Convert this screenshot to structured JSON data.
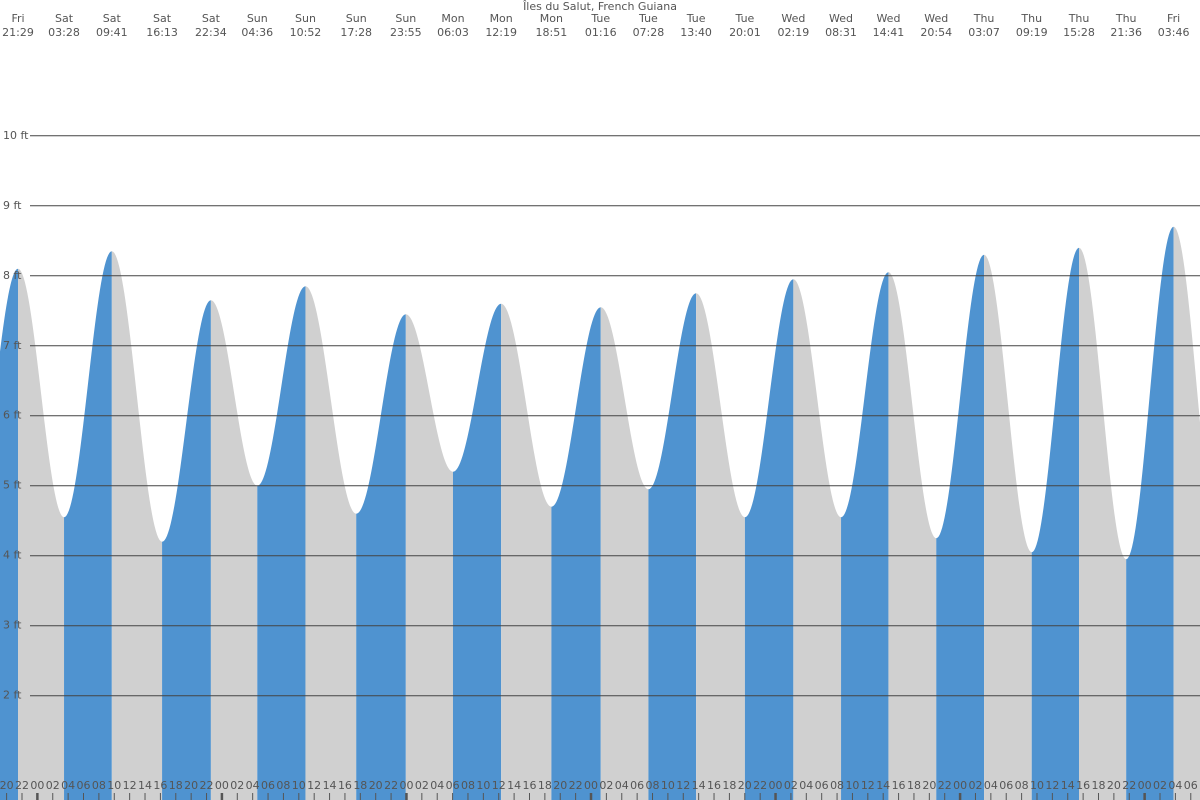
{
  "chart_data": {
    "type": "area",
    "title": "Îles du Salut, French Guiana",
    "days": [
      "Fri",
      "Sat",
      "Sat",
      "Sat",
      "Sat",
      "Sun",
      "Sun",
      "Sun",
      "Sun",
      "Mon",
      "Mon",
      "Mon",
      "Tue",
      "Tue",
      "Tue",
      "Tue",
      "Wed",
      "Wed",
      "Wed",
      "Wed",
      "Thu",
      "Thu",
      "Thu",
      "Thu",
      "Fri"
    ],
    "times": [
      "21:29",
      "03:28",
      "09:41",
      "16:13",
      "22:34",
      "04:36",
      "10:52",
      "17:28",
      "23:55",
      "06:03",
      "12:19",
      "18:51",
      "01:16",
      "07:28",
      "13:40",
      "20:01",
      "02:19",
      "08:31",
      "14:41",
      "20:54",
      "03:07",
      "09:19",
      "15:28",
      "21:36",
      "03:46"
    ],
    "x": [
      21.483,
      27.467,
      33.683,
      40.217,
      46.567,
      52.6,
      58.867,
      65.467,
      71.917,
      78.05,
      84.317,
      90.85,
      97.267,
      103.467,
      109.667,
      116.017,
      122.317,
      128.517,
      134.683,
      140.9,
      147.117,
      153.317,
      159.467,
      165.6,
      171.767
    ],
    "values": [
      8.1,
      4.55,
      8.35,
      4.2,
      7.65,
      5.0,
      7.85,
      4.6,
      7.45,
      5.2,
      7.6,
      4.7,
      7.55,
      4.95,
      7.75,
      4.55,
      7.95,
      4.55,
      8.05,
      4.25,
      8.3,
      4.05,
      8.4,
      3.95,
      8.7
    ],
    "rising_color": "#4f93d0",
    "falling_color": "#d0d0d0",
    "grid": true,
    "xlim": [
      19.14,
      175.2
    ],
    "ylim": [
      0.51,
      11.94
    ],
    "yticks": [
      {
        "value": 2,
        "label": "2 ft"
      },
      {
        "value": 3,
        "label": "3 ft"
      },
      {
        "value": 4,
        "label": "4 ft"
      },
      {
        "value": 5,
        "label": "5 ft"
      },
      {
        "value": 6,
        "label": "6 ft"
      },
      {
        "value": 7,
        "label": "7 ft"
      },
      {
        "value": 8,
        "label": "8 ft"
      },
      {
        "value": 9,
        "label": "9 ft"
      },
      {
        "value": 10,
        "label": "10 ft"
      }
    ],
    "xticks": [
      {
        "value": 20,
        "label": "20"
      },
      {
        "value": 22,
        "label": "22"
      },
      {
        "value": 24,
        "label": "00"
      },
      {
        "value": 26,
        "label": "02"
      },
      {
        "value": 28,
        "label": "04"
      },
      {
        "value": 30,
        "label": "06"
      },
      {
        "value": 32,
        "label": "08"
      },
      {
        "value": 34,
        "label": "10"
      },
      {
        "value": 36,
        "label": "12"
      },
      {
        "value": 38,
        "label": "14"
      },
      {
        "value": 40,
        "label": "16"
      },
      {
        "value": 42,
        "label": "18"
      },
      {
        "value": 44,
        "label": "20"
      },
      {
        "value": 46,
        "label": "22"
      },
      {
        "value": 48,
        "label": "00"
      },
      {
        "value": 50,
        "label": "02"
      },
      {
        "value": 52,
        "label": "04"
      },
      {
        "value": 54,
        "label": "06"
      },
      {
        "value": 56,
        "label": "08"
      },
      {
        "value": 58,
        "label": "10"
      },
      {
        "value": 60,
        "label": "12"
      },
      {
        "value": 62,
        "label": "14"
      },
      {
        "value": 64,
        "label": "16"
      },
      {
        "value": 66,
        "label": "18"
      },
      {
        "value": 68,
        "label": "20"
      },
      {
        "value": 70,
        "label": "22"
      },
      {
        "value": 72,
        "label": "00"
      },
      {
        "value": 74,
        "label": "02"
      },
      {
        "value": 76,
        "label": "04"
      },
      {
        "value": 78,
        "label": "06"
      },
      {
        "value": 80,
        "label": "08"
      },
      {
        "value": 82,
        "label": "10"
      },
      {
        "value": 84,
        "label": "12"
      },
      {
        "value": 86,
        "label": "14"
      },
      {
        "value": 88,
        "label": "16"
      },
      {
        "value": 90,
        "label": "18"
      },
      {
        "value": 92,
        "label": "20"
      },
      {
        "value": 94,
        "label": "22"
      },
      {
        "value": 96,
        "label": "00"
      },
      {
        "value": 98,
        "label": "02"
      },
      {
        "value": 100,
        "label": "04"
      },
      {
        "value": 102,
        "label": "06"
      },
      {
        "value": 104,
        "label": "08"
      },
      {
        "value": 106,
        "label": "10"
      },
      {
        "value": 108,
        "label": "12"
      },
      {
        "value": 110,
        "label": "14"
      },
      {
        "value": 112,
        "label": "16"
      },
      {
        "value": 114,
        "label": "18"
      },
      {
        "value": 116,
        "label": "20"
      },
      {
        "value": 118,
        "label": "22"
      },
      {
        "value": 120,
        "label": "00"
      },
      {
        "value": 122,
        "label": "02"
      },
      {
        "value": 124,
        "label": "04"
      },
      {
        "value": 126,
        "label": "06"
      },
      {
        "value": 128,
        "label": "08"
      },
      {
        "value": 130,
        "label": "10"
      },
      {
        "value": 132,
        "label": "12"
      },
      {
        "value": 134,
        "label": "14"
      },
      {
        "value": 136,
        "label": "16"
      },
      {
        "value": 138,
        "label": "18"
      },
      {
        "value": 140,
        "label": "20"
      },
      {
        "value": 142,
        "label": "22"
      },
      {
        "value": 144,
        "label": "00"
      },
      {
        "value": 146,
        "label": "02"
      },
      {
        "value": 148,
        "label": "04"
      },
      {
        "value": 150,
        "label": "06"
      },
      {
        "value": 152,
        "label": "08"
      },
      {
        "value": 154,
        "label": "10"
      },
      {
        "value": 156,
        "label": "12"
      },
      {
        "value": 158,
        "label": "14"
      },
      {
        "value": 160,
        "label": "16"
      },
      {
        "value": 162,
        "label": "18"
      },
      {
        "value": 164,
        "label": "20"
      },
      {
        "value": 166,
        "label": "22"
      },
      {
        "value": 168,
        "label": "00"
      },
      {
        "value": 170,
        "label": "02"
      },
      {
        "value": 172,
        "label": "04"
      },
      {
        "value": 174,
        "label": "06"
      }
    ]
  }
}
